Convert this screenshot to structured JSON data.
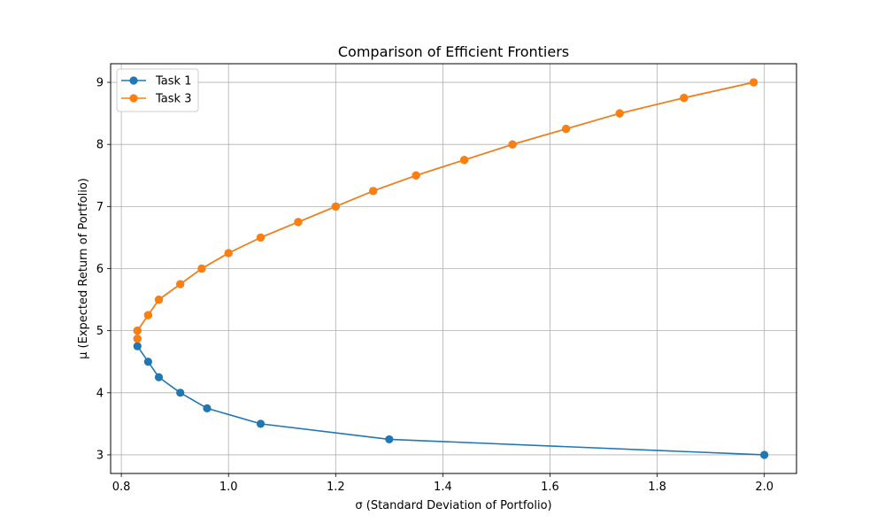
{
  "chart_data": {
    "type": "line",
    "title": "Comparison of Efficient Frontiers",
    "xlabel": "σ (Standard Deviation of Portfolio)",
    "ylabel": "μ (Expected Return of Portfolio)",
    "xlim": [
      0.78,
      2.06
    ],
    "ylim": [
      2.7,
      9.3
    ],
    "xticks": [
      0.8,
      1.0,
      1.2,
      1.4,
      1.6,
      1.8,
      2.0
    ],
    "xtick_labels": [
      "0.8",
      "1.0",
      "1.2",
      "1.4",
      "1.6",
      "1.8",
      "2.0"
    ],
    "yticks": [
      3,
      4,
      5,
      6,
      7,
      8,
      9
    ],
    "ytick_labels": [
      "3",
      "4",
      "5",
      "6",
      "7",
      "8",
      "9"
    ],
    "grid": true,
    "legend_position": "top-left",
    "series": [
      {
        "name": "Task 1",
        "color": "#1f77b4",
        "x": [
          2.0,
          1.3,
          1.06,
          0.96,
          0.91,
          0.87,
          0.85,
          0.83,
          0.83,
          0.83,
          0.85,
          0.87,
          0.91,
          0.95,
          1.0,
          1.06,
          1.13,
          1.2,
          1.27,
          1.35,
          1.44,
          1.53,
          1.63,
          1.73,
          1.85,
          1.98
        ],
        "y": [
          3.0,
          3.25,
          3.5,
          3.75,
          4.0,
          4.25,
          4.5,
          4.75,
          4.87,
          5.0,
          5.25,
          5.5,
          5.75,
          6.0,
          6.25,
          6.5,
          6.75,
          7.0,
          7.25,
          7.5,
          7.75,
          8.0,
          8.25,
          8.5,
          8.75,
          9.0
        ]
      },
      {
        "name": "Task 3",
        "color": "#ff7f0e",
        "x": [
          0.83,
          0.83,
          0.85,
          0.87,
          0.91,
          0.95,
          1.0,
          1.06,
          1.13,
          1.2,
          1.27,
          1.35,
          1.44,
          1.53,
          1.63,
          1.73,
          1.85,
          1.98
        ],
        "y": [
          4.87,
          5.0,
          5.25,
          5.5,
          5.75,
          6.0,
          6.25,
          6.5,
          6.75,
          7.0,
          7.25,
          7.5,
          7.75,
          8.0,
          8.25,
          8.5,
          8.75,
          9.0
        ]
      }
    ]
  }
}
